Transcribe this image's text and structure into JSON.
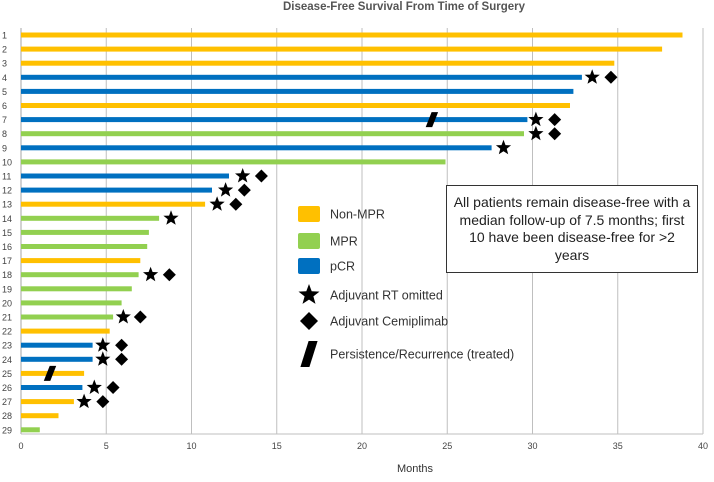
{
  "chart_data": {
    "type": "bar",
    "orientation": "horizontal",
    "title": "Disease-Free Survival From Time of Surgery",
    "xlabel": "Months",
    "ylabel": "",
    "xlim": [
      0,
      40
    ],
    "xticks": [
      0,
      5,
      10,
      15,
      20,
      25,
      30,
      35,
      40
    ],
    "grid": "vertical",
    "colors": {
      "Non-MPR": "#FFC000",
      "MPR": "#92D050",
      "pCR": "#0070C0",
      "marker": "#000000"
    },
    "legend": {
      "placement": "center-right",
      "entries": [
        {
          "label": "Non-MPR",
          "kind": "swatch",
          "color": "#FFC000"
        },
        {
          "label": "MPR",
          "kind": "swatch",
          "color": "#92D050"
        },
        {
          "label": "pCR",
          "kind": "swatch",
          "color": "#0070C0"
        },
        {
          "label": "Adjuvant RT omitted",
          "kind": "star"
        },
        {
          "label": "Adjuvant Cemiplimab",
          "kind": "diamond"
        },
        {
          "label": "Persistence/Recurrence (treated)",
          "kind": "bar-marker"
        }
      ]
    },
    "annotation": "All patients remain disease-free with a median follow-up of 7.5 months; first 10 have been disease-free for >2 years",
    "patients": [
      {
        "id": "1",
        "months": 38.8,
        "group": "Non-MPR"
      },
      {
        "id": "2",
        "months": 37.6,
        "group": "Non-MPR"
      },
      {
        "id": "3",
        "months": 34.8,
        "group": "Non-MPR"
      },
      {
        "id": "4",
        "months": 32.9,
        "group": "pCR",
        "rt_omitted": 33.5,
        "cemiplimab": 34.6
      },
      {
        "id": "5",
        "months": 32.4,
        "group": "pCR"
      },
      {
        "id": "6",
        "months": 32.2,
        "group": "Non-MPR"
      },
      {
        "id": "7",
        "months": 29.7,
        "group": "pCR",
        "recurrence": 24.1,
        "rt_omitted": 30.2,
        "cemiplimab": 31.3
      },
      {
        "id": "8",
        "months": 29.5,
        "group": "MPR",
        "rt_omitted": 30.2,
        "cemiplimab": 31.3
      },
      {
        "id": "9",
        "months": 27.6,
        "group": "pCR",
        "rt_omitted": 28.3
      },
      {
        "id": "10",
        "months": 24.9,
        "group": "MPR"
      },
      {
        "id": "11",
        "months": 12.2,
        "group": "pCR",
        "rt_omitted": 13.0,
        "cemiplimab": 14.1
      },
      {
        "id": "12",
        "months": 11.2,
        "group": "pCR",
        "rt_omitted": 12.0,
        "cemiplimab": 13.1
      },
      {
        "id": "13",
        "months": 10.8,
        "group": "Non-MPR",
        "rt_omitted": 11.5,
        "cemiplimab": 12.6
      },
      {
        "id": "14",
        "months": 8.1,
        "group": "MPR",
        "rt_omitted": 8.8
      },
      {
        "id": "15",
        "months": 7.5,
        "group": "MPR"
      },
      {
        "id": "16",
        "months": 7.4,
        "group": "MPR"
      },
      {
        "id": "17",
        "months": 7.0,
        "group": "Non-MPR"
      },
      {
        "id": "18",
        "months": 6.9,
        "group": "MPR",
        "rt_omitted": 7.6,
        "cemiplimab": 8.7
      },
      {
        "id": "19",
        "months": 6.5,
        "group": "MPR"
      },
      {
        "id": "20",
        "months": 5.9,
        "group": "MPR"
      },
      {
        "id": "21",
        "months": 5.4,
        "group": "MPR",
        "rt_omitted": 6.0,
        "cemiplimab": 7.0
      },
      {
        "id": "22",
        "months": 5.2,
        "group": "Non-MPR"
      },
      {
        "id": "23",
        "months": 4.2,
        "group": "pCR",
        "rt_omitted": 4.8,
        "cemiplimab": 5.9
      },
      {
        "id": "24",
        "months": 4.2,
        "group": "pCR",
        "rt_omitted": 4.8,
        "cemiplimab": 5.9
      },
      {
        "id": "25",
        "months": 3.7,
        "group": "Non-MPR",
        "recurrence": 1.7
      },
      {
        "id": "26",
        "months": 3.6,
        "group": "pCR",
        "rt_omitted": 4.3,
        "cemiplimab": 5.4
      },
      {
        "id": "27",
        "months": 3.1,
        "group": "Non-MPR",
        "rt_omitted": 3.7,
        "cemiplimab": 4.8
      },
      {
        "id": "28",
        "months": 2.2,
        "group": "Non-MPR"
      },
      {
        "id": "29",
        "months": 1.1,
        "group": "MPR"
      }
    ]
  }
}
